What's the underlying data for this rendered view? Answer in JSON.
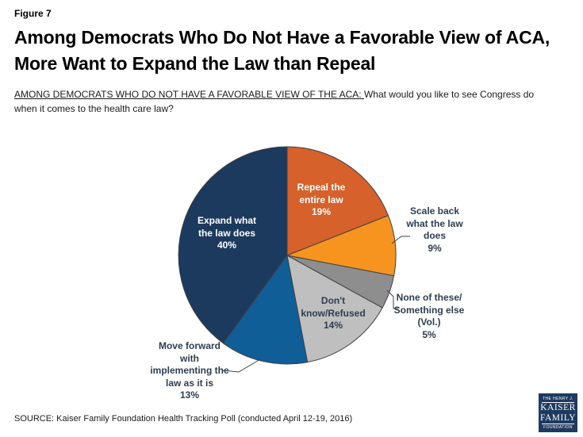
{
  "figure_label": "Figure 7",
  "title_line1": "Among Democrats Who Do Not Have a Favorable View of ACA,",
  "title_line2": "More Want to Expand the Law than Repeal",
  "subtitle_underlined": "AMONG DEMOCRATS WHO DO NOT HAVE A FAVORABLE VIEW OF THE ACA: ",
  "subtitle_rest": "What would you like to see Congress do when it comes to the health care law?",
  "source": "SOURCE: Kaiser Family Foundation Health Tracking Poll (conducted April 12-19, 2016)",
  "logo": {
    "line1": "THE HENRY J.",
    "line2": "KAISER",
    "line3": "FAMILY",
    "line4": "FOUNDATION"
  },
  "chart_data": {
    "type": "pie",
    "title": "What would you like to see Congress do when it comes to the health care law? (Among Democrats who do not have a favorable view of the ACA)",
    "start_angle_deg": 0,
    "direction": "clockwise",
    "border_color": "#404040",
    "slices": [
      {
        "id": "repeal",
        "label": "Repeal the entire law",
        "value": 19,
        "color": "#d6612b",
        "label_color": "#ffffff",
        "label_placement": "inside",
        "display": "Repeal the\nentire law\n19%"
      },
      {
        "id": "scale-back",
        "label": "Scale back what the law does",
        "value": 9,
        "color": "#f79420",
        "label_color": "#2e3d4f",
        "label_placement": "outside",
        "display": "Scale back\nwhat the law\ndoes\n9%"
      },
      {
        "id": "none-something-else",
        "label": "None of these/Something else (Vol.)",
        "value": 5,
        "color": "#8e8e8e",
        "label_color": "#2e3d4f",
        "label_placement": "outside",
        "display": "None of these/\nSomething else\n(Vol.)\n5%"
      },
      {
        "id": "dont-know",
        "label": "Don't know/Refused",
        "value": 14,
        "color": "#bfbfbf",
        "label_color": "#2e3d4f",
        "label_placement": "inside",
        "display": "Don't\nknow/Refused\n14%"
      },
      {
        "id": "move-forward",
        "label": "Move forward with implementing the law as it is",
        "value": 13,
        "color": "#0f5e98",
        "label_color": "#2e3d4f",
        "label_placement": "outside",
        "display": "Move forward\nwith\nimplementing the\nlaw as it is\n13%"
      },
      {
        "id": "expand",
        "label": "Expand what the law does",
        "value": 40,
        "color": "#1c3a5e",
        "label_color": "#ffffff",
        "label_placement": "inside",
        "display": "Expand what\nthe law does\n40%"
      }
    ]
  }
}
